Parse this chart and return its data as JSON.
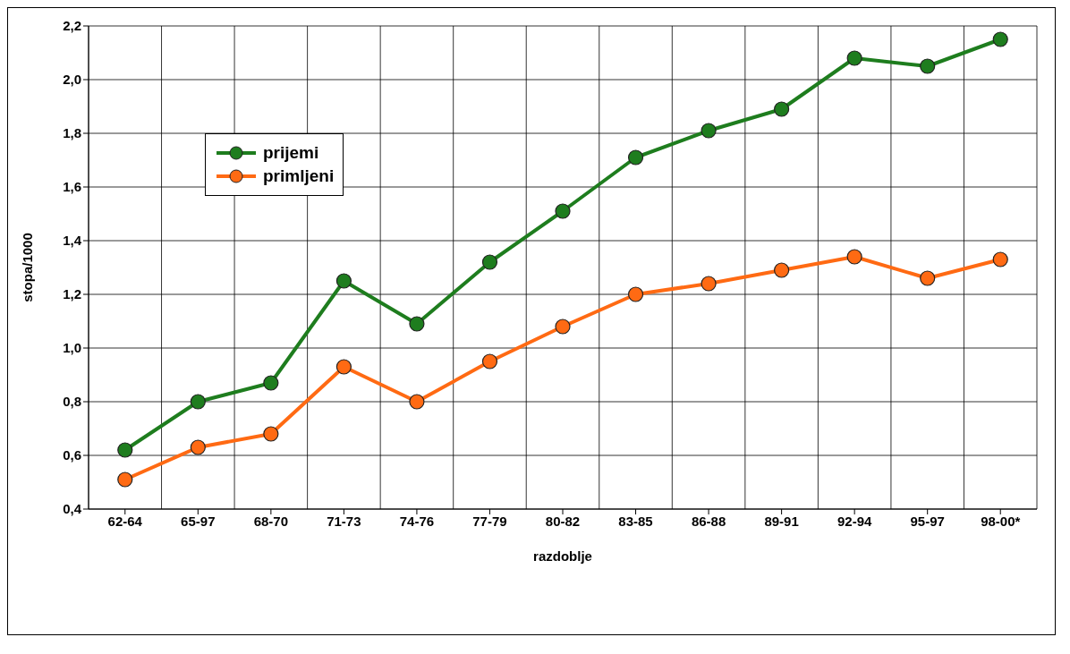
{
  "chart_data": {
    "type": "line",
    "xlabel": "razdoblje",
    "ylabel": "stopa/1000",
    "categories": [
      "62-64",
      "65-97",
      "68-70",
      "71-73",
      "74-76",
      "77-79",
      "80-82",
      "83-85",
      "86-88",
      "89-91",
      "92-94",
      "95-97",
      "98-00*"
    ],
    "series": [
      {
        "name": "prijemi",
        "color": "#1e7d1e",
        "values": [
          0.62,
          0.8,
          0.87,
          1.25,
          1.09,
          1.32,
          1.51,
          1.71,
          1.81,
          1.89,
          2.08,
          2.05,
          2.15
        ]
      },
      {
        "name": "primljeni",
        "color": "#ff6a13",
        "values": [
          0.51,
          0.63,
          0.68,
          0.93,
          0.8,
          0.95,
          1.08,
          1.2,
          1.24,
          1.29,
          1.34,
          1.26,
          1.33
        ]
      }
    ],
    "ylim": [
      0.4,
      2.2
    ],
    "yticks": [
      {
        "value": 0.4,
        "label": "0,4"
      },
      {
        "value": 0.6,
        "label": "0,6"
      },
      {
        "value": 0.8,
        "label": "0,8"
      },
      {
        "value": 1.0,
        "label": "1,0"
      },
      {
        "value": 1.2,
        "label": "1,2"
      },
      {
        "value": 1.4,
        "label": "1,4"
      },
      {
        "value": 1.6,
        "label": "1,6"
      },
      {
        "value": 1.8,
        "label": "1,8"
      },
      {
        "value": 2.0,
        "label": "2,0"
      },
      {
        "value": 2.2,
        "label": "2,2"
      }
    ],
    "grid": true,
    "legend": "top left",
    "marker": "circle",
    "line_style": "solid"
  }
}
